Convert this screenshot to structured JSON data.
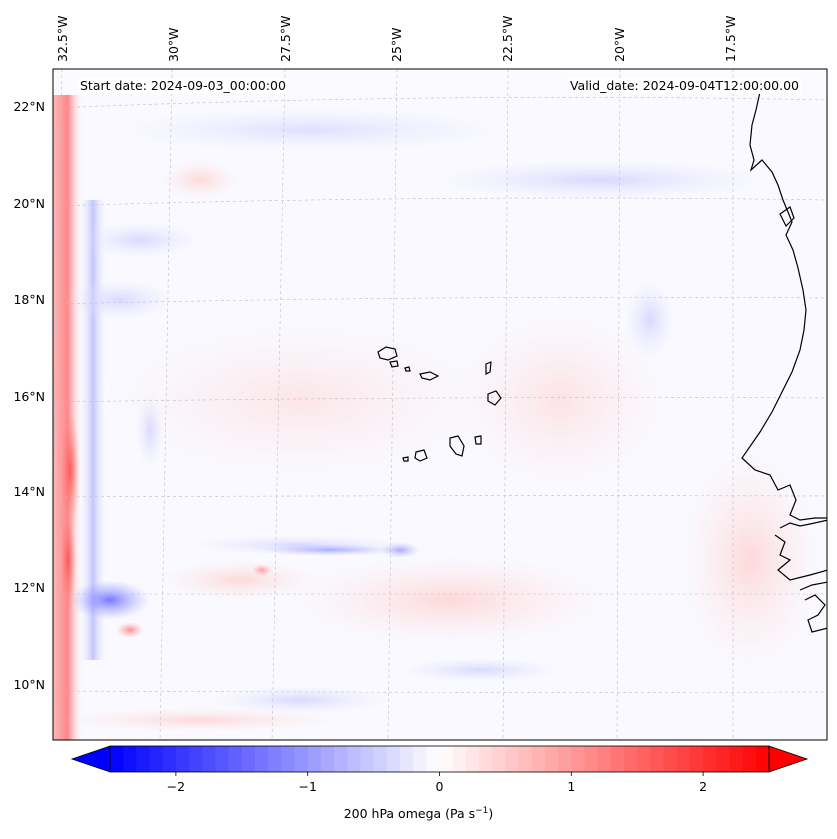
{
  "header": {
    "start_date": "Start date: 2024-09-03_00:00:00",
    "valid_date": "Valid_date: 2024-09-04T12:00:00.00"
  },
  "map": {
    "lon_labels": [
      "32.5°W",
      "30°W",
      "27.5°W",
      "25°W",
      "22.5°W",
      "20°W",
      "17.5°W"
    ],
    "lat_labels": [
      "22°N",
      "20°N",
      "18°N",
      "16°N",
      "14°N",
      "12°N",
      "10°N"
    ],
    "lat_values": [
      22,
      20,
      18,
      16,
      14,
      12,
      10
    ],
    "lon_values": [
      -32.5,
      -30,
      -27.5,
      -25,
      -22.5,
      -20,
      -17.5
    ],
    "field": "200 hPa omega",
    "colormap": "bwr"
  },
  "colorbar": {
    "tick_labels": [
      "−2",
      "−1",
      "0",
      "1",
      "2"
    ],
    "tick_values": [
      -2,
      -1,
      0,
      1,
      2
    ],
    "range": [
      -2.5,
      2.5
    ],
    "label_main": "200 hPa omega (Pa s",
    "label_sup": "−1",
    "label_end": ")",
    "extend": "both",
    "color_min": "#0000ff",
    "color_mid": "#ffffff",
    "color_max": "#ff0000"
  }
}
